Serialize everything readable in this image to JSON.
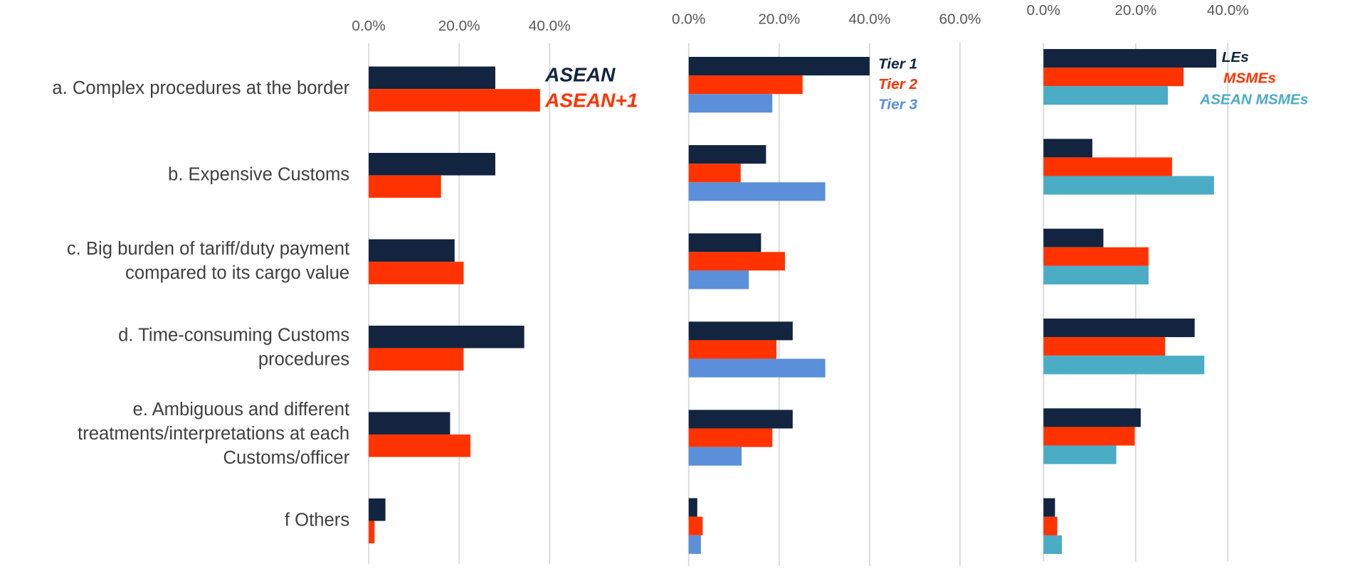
{
  "chart_data": [
    {
      "type": "bar",
      "orientation": "horizontal",
      "categories": [
        "a. Complex procedures at the border",
        "b. Expensive Customs",
        "c. Big burden of tariff/duty payment\ncompared to its cargo value",
        "d. Time-consuming Customs\nprocedures",
        "e. Ambiguous and different\ntreatments/interpretations at each\nCustoms/officer",
        "f Others"
      ],
      "series": [
        {
          "name": "ASEAN",
          "color": "#12243f",
          "values": [
            28,
            28,
            19,
            34.4,
            18,
            3.7
          ]
        },
        {
          "name": "ASEAN+1",
          "color": "#ff3300",
          "values": [
            37.9,
            16,
            21,
            21,
            22.5,
            1.3
          ]
        }
      ],
      "xlim": [
        0,
        40
      ],
      "xticks": [
        {
          "value": 0,
          "label": "0.0%"
        },
        {
          "value": 20,
          "label": "20.0%"
        },
        {
          "value": 40,
          "label": "40.0%"
        }
      ],
      "grid": true
    },
    {
      "type": "bar",
      "orientation": "horizontal",
      "series": [
        {
          "name": "Tier 1",
          "color": "#12243f",
          "values": [
            40,
            17.1,
            16,
            23,
            23,
            1.9
          ]
        },
        {
          "name": "Tier 2",
          "color": "#ff3300",
          "values": [
            25.2,
            11.5,
            21.3,
            19.4,
            18.5,
            3.1
          ]
        },
        {
          "name": "Tier 3",
          "color": "#5b8fd9",
          "values": [
            18.5,
            30.2,
            13.3,
            30.2,
            11.7,
            2.7
          ]
        }
      ],
      "xlim": [
        0,
        60
      ],
      "xticks": [
        {
          "value": 0,
          "label": "0.0%"
        },
        {
          "value": 20,
          "label": "20.0%"
        },
        {
          "value": 40,
          "label": "40.0%"
        },
        {
          "value": 60,
          "label": "60.0%"
        }
      ],
      "grid": true
    },
    {
      "type": "bar",
      "orientation": "horizontal",
      "series": [
        {
          "name": "LEs",
          "color": "#12243f",
          "values": [
            37.5,
            10.6,
            13,
            32.8,
            21.1,
            2.5
          ]
        },
        {
          "name": "MSMEs",
          "color": "#ff3300",
          "values": [
            30.4,
            27.9,
            22.8,
            26.4,
            19.8,
            3
          ]
        },
        {
          "name": "ASEAN MSMEs",
          "color": "#4bacc6",
          "values": [
            27,
            37,
            22.8,
            34.9,
            15.8,
            4
          ]
        }
      ],
      "xlim": [
        0,
        40
      ],
      "xticks": [
        {
          "value": 0,
          "label": "0.0%"
        },
        {
          "value": 20,
          "label": "20.0%"
        },
        {
          "value": 40,
          "label": "40.0%"
        }
      ],
      "grid": true
    }
  ]
}
